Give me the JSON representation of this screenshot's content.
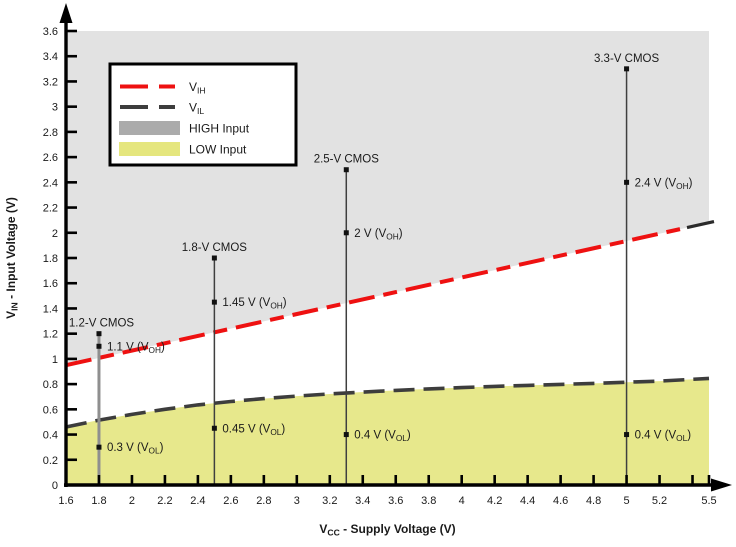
{
  "chart_data": {
    "type": "line",
    "title": "",
    "xlabel": "V_{CC} - Supply Voltage (V)",
    "ylabel": "V_{IN} - Input Voltage (V)",
    "xlim": [
      1.6,
      5.5
    ],
    "ylim": [
      0,
      3.6
    ],
    "grid": false,
    "x_ticks": [
      {
        "v": 1.6,
        "label": "1.6"
      },
      {
        "v": 1.8,
        "label": "1.8"
      },
      {
        "v": 2.0,
        "label": "2"
      },
      {
        "v": 2.2,
        "label": "2.2"
      },
      {
        "v": 2.4,
        "label": "2.4"
      },
      {
        "v": 2.6,
        "label": "2.6"
      },
      {
        "v": 2.8,
        "label": "2.8"
      },
      {
        "v": 3.0,
        "label": "3"
      },
      {
        "v": 3.2,
        "label": "3.2"
      },
      {
        "v": 3.4,
        "label": "3.4"
      },
      {
        "v": 3.6,
        "label": "3.6"
      },
      {
        "v": 3.8,
        "label": "3.8"
      },
      {
        "v": 4.0,
        "label": "4"
      },
      {
        "v": 4.2,
        "label": "4.2"
      },
      {
        "v": 4.4,
        "label": "4.4"
      },
      {
        "v": 4.6,
        "label": "4.6"
      },
      {
        "v": 4.8,
        "label": "4.8"
      },
      {
        "v": 5.0,
        "label": "5"
      },
      {
        "v": 5.2,
        "label": "5.2"
      },
      {
        "v": 5.4,
        "label": ""
      },
      {
        "v": 5.5,
        "label": "5.5"
      }
    ],
    "y_ticks": [
      {
        "v": 0,
        "label": "0"
      },
      {
        "v": 0.2,
        "label": "0.2"
      },
      {
        "v": 0.4,
        "label": "0.4"
      },
      {
        "v": 0.6,
        "label": "0.6"
      },
      {
        "v": 0.8,
        "label": "0.8"
      },
      {
        "v": 1.0,
        "label": "1"
      },
      {
        "v": 1.2,
        "label": "1.2"
      },
      {
        "v": 1.4,
        "label": "1.4"
      },
      {
        "v": 1.6,
        "label": "1.6"
      },
      {
        "v": 1.8,
        "label": "1.8"
      },
      {
        "v": 2.0,
        "label": "2"
      },
      {
        "v": 2.2,
        "label": "2.2"
      },
      {
        "v": 2.4,
        "label": "2.4"
      },
      {
        "v": 2.6,
        "label": "2.6"
      },
      {
        "v": 2.8,
        "label": "2.8"
      },
      {
        "v": 3.0,
        "label": "3"
      },
      {
        "v": 3.2,
        "label": "3.2"
      },
      {
        "v": 3.4,
        "label": "3.4"
      },
      {
        "v": 3.6,
        "label": "3.6"
      }
    ],
    "legend": {
      "position": "top-left",
      "items": [
        {
          "kind": "dashed-line",
          "color_key": "vih",
          "label": "V_{IH}"
        },
        {
          "kind": "dashed-line",
          "color_key": "vil",
          "label": "V_{IL}"
        },
        {
          "kind": "swatch",
          "color_key": "high_swatch",
          "label": "HIGH Input"
        },
        {
          "kind": "swatch",
          "color_key": "low_swatch",
          "label": "LOW Input"
        }
      ]
    },
    "series": [
      {
        "name": "V_{IH}",
        "style": "dashed",
        "color_key": "vih",
        "final_dash_dark": true,
        "points": [
          [
            1.6,
            0.95
          ],
          [
            5.5,
            2.08
          ]
        ]
      },
      {
        "name": "V_{IL}",
        "style": "dashed",
        "color_key": "vil",
        "points": [
          [
            1.6,
            0.46
          ],
          [
            1.8,
            0.515
          ],
          [
            2.0,
            0.56
          ],
          [
            2.2,
            0.6
          ],
          [
            2.4,
            0.635
          ],
          [
            2.6,
            0.662
          ],
          [
            2.8,
            0.685
          ],
          [
            3.0,
            0.705
          ],
          [
            3.2,
            0.722
          ],
          [
            3.4,
            0.737
          ],
          [
            3.6,
            0.75
          ],
          [
            3.8,
            0.762
          ],
          [
            4.0,
            0.772
          ],
          [
            4.2,
            0.782
          ],
          [
            4.4,
            0.79
          ],
          [
            4.6,
            0.798
          ],
          [
            4.8,
            0.806
          ],
          [
            5.0,
            0.815
          ],
          [
            5.2,
            0.824
          ],
          [
            5.5,
            0.845
          ]
        ]
      }
    ],
    "regions": [
      {
        "name": "HIGH Input",
        "bound": "above-VIH-to-ytop",
        "fill_key": "high_fill"
      },
      {
        "name": "LOW Input",
        "bound": "below-VIL-to-zero",
        "fill_key": "low_fill"
      }
    ],
    "cmos_lines": [
      {
        "x": 1.8,
        "top": 1.2,
        "name": "1.2-V CMOS",
        "style": "gray",
        "points": [
          {
            "v": 1.1,
            "label": "1.1 V (V_{OH})"
          },
          {
            "v": 0.3,
            "label": "0.3 V (V_{OL})"
          }
        ]
      },
      {
        "x": 2.5,
        "top": 1.8,
        "name": "1.8-V CMOS",
        "style": "dark",
        "points": [
          {
            "v": 1.45,
            "label": "1.45 V (V_{OH})"
          },
          {
            "v": 0.45,
            "label": "0.45 V (V_{OL})"
          }
        ]
      },
      {
        "x": 3.3,
        "top": 2.5,
        "name": "2.5-V CMOS",
        "style": "dark",
        "points": [
          {
            "v": 2.0,
            "label": "2 V (V_{OH})"
          },
          {
            "v": 0.4,
            "label": "0.4 V (V_{OL})"
          }
        ]
      },
      {
        "x": 5.0,
        "top": 3.3,
        "name": "3.3-V CMOS",
        "style": "dark",
        "points": [
          {
            "v": 2.4,
            "label": "2.4 V (V_{OH})"
          },
          {
            "v": 0.4,
            "label": "0.4 V (V_{OL})"
          }
        ]
      }
    ],
    "colors": {
      "vih": "#ee1111",
      "vil": "#3d3d3d",
      "high_fill": "#e2e2e2",
      "low_fill": "#e7e88c",
      "high_swatch": "#ababab",
      "low_swatch": "#e5e67e",
      "axis": "#000000",
      "line_gray": "#8f8f8f",
      "line_dark": "#3f3f3f",
      "marker": "#111111",
      "text": "#1a1a1a"
    }
  }
}
